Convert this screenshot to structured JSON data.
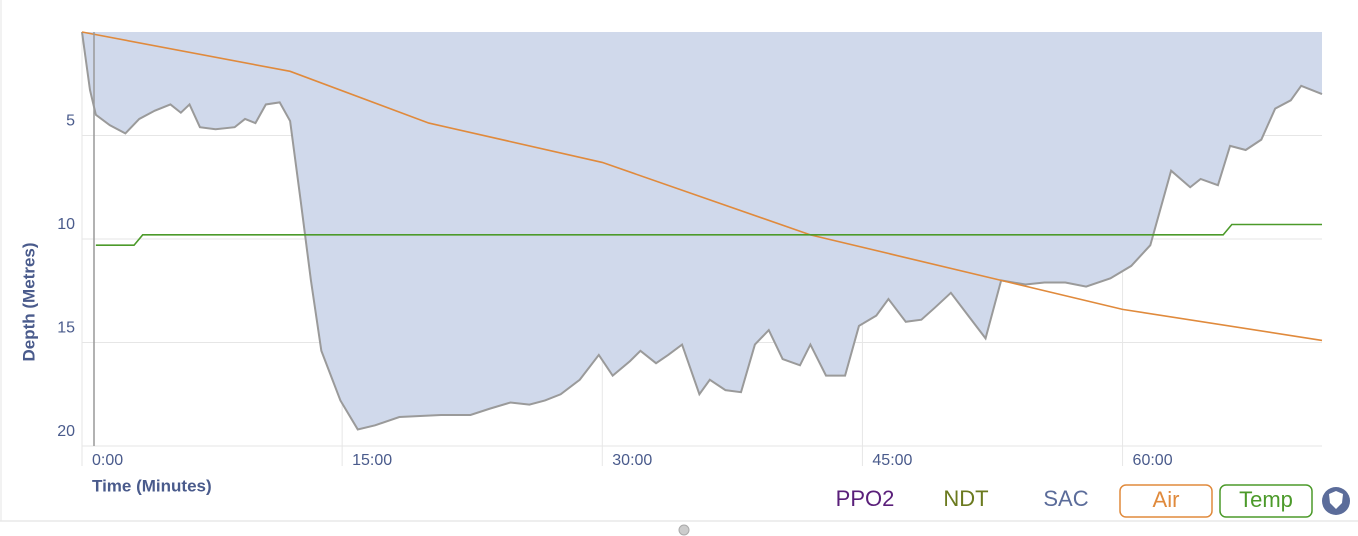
{
  "chart_data": {
    "type": "area",
    "y_label": "Depth (Metres)",
    "x_label": "Time (Minutes)",
    "ylim": [
      0,
      20
    ],
    "y_inverted": true,
    "yticks": [
      5,
      10,
      15,
      20
    ],
    "xlim": [
      0,
      71.5
    ],
    "xticks": [
      {
        "value": 0,
        "label": "0:00"
      },
      {
        "value": 15,
        "label": "15:00"
      },
      {
        "value": 30,
        "label": "30:00"
      },
      {
        "value": 45,
        "label": "45:00"
      },
      {
        "value": 60,
        "label": "60:00"
      }
    ],
    "grid": true,
    "series": [
      {
        "color": "#9a9a9a",
        "fill": "#d0d9eb",
        "x": [
          0,
          0.46,
          0.8,
          1.6,
          2.5,
          3.3,
          4.2,
          5.1,
          5.7,
          6.2,
          6.8,
          7.7,
          8.8,
          9.4,
          10.0,
          10.6,
          11.4,
          12.0,
          12.6,
          13.2,
          13.8,
          14.9,
          15.9,
          16.9,
          18.3,
          20.7,
          22.4,
          23.5,
          24.7,
          25.8,
          26.7,
          27.6,
          28.7,
          29.8,
          30.6,
          31.6,
          32.2,
          33.1,
          33.8,
          34.6,
          35.6,
          36.2,
          37.1,
          38.0,
          38.8,
          39.6,
          40.4,
          41.4,
          42.0,
          42.9,
          44.0,
          44.8,
          45.8,
          46.5,
          47.5,
          48.4,
          49.2,
          50.1,
          51.1,
          52.1,
          53.0,
          54.4,
          55.5,
          56.7,
          57.9,
          59.3,
          60.5,
          61.6,
          62.8,
          63.9,
          64.5,
          65.5,
          66.2,
          67.1,
          68.0,
          68.8,
          69.7,
          70.3,
          71.5
        ],
        "values": [
          0,
          2.8,
          4.0,
          4.5,
          4.9,
          4.2,
          3.8,
          3.5,
          3.9,
          3.5,
          4.6,
          4.7,
          4.6,
          4.2,
          4.4,
          3.5,
          3.4,
          4.3,
          8.1,
          12.0,
          15.4,
          17.8,
          19.2,
          19.0,
          18.6,
          18.5,
          18.5,
          18.2,
          17.9,
          18.0,
          17.8,
          17.5,
          16.8,
          15.6,
          16.6,
          15.9,
          15.4,
          16.0,
          15.6,
          15.1,
          17.5,
          16.8,
          17.3,
          17.4,
          15.1,
          14.4,
          15.8,
          16.1,
          15.1,
          16.6,
          16.6,
          14.2,
          13.7,
          12.9,
          14.0,
          13.9,
          13.3,
          12.6,
          13.7,
          14.8,
          12.0,
          12.2,
          12.1,
          12.1,
          12.3,
          11.9,
          11.3,
          10.3,
          6.7,
          7.5,
          7.1,
          7.4,
          5.5,
          5.7,
          5.2,
          3.7,
          3.3,
          2.6,
          3.0
        ]
      },
      {
        "name": "Air",
        "color": "#e08a3c",
        "x": [
          0,
          12,
          20,
          30,
          42,
          53,
          60,
          71.5
        ],
        "values": [
          0,
          1.9,
          4.4,
          6.3,
          9.8,
          12.0,
          13.4,
          14.9
        ]
      },
      {
        "name": "Temp",
        "color": "#4c9a2a",
        "x": [
          0.8,
          3,
          3.5,
          65.8,
          66.3,
          71.5
        ],
        "values": [
          10.3,
          10.3,
          9.8,
          9.8,
          9.3,
          9.3
        ]
      }
    ],
    "toggles": [
      {
        "name": "PPO2",
        "color": "#5a1f7a"
      },
      {
        "name": "NDT",
        "color": "#6b7a1f"
      },
      {
        "name": "SAC",
        "color": "#5b6c9a"
      }
    ]
  }
}
